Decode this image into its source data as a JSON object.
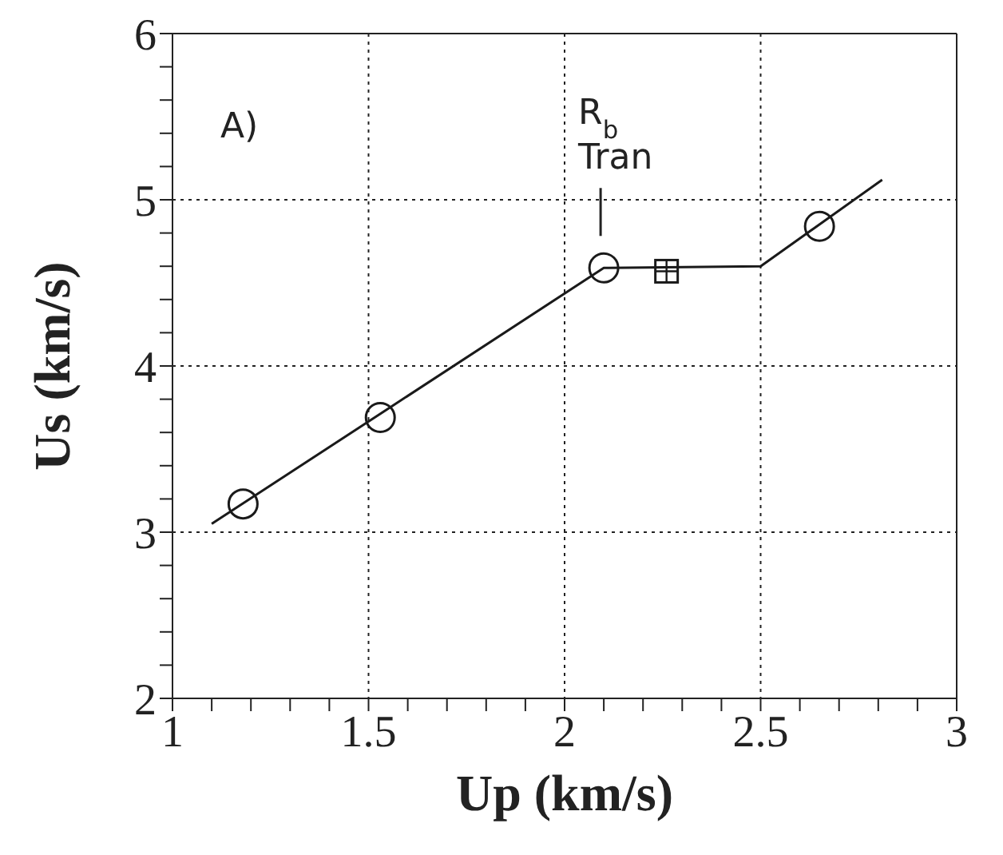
{
  "chart_data": {
    "type": "scatter",
    "xlabel": "Up (km/s)",
    "ylabel": "Us (km/s)",
    "series": [
      {
        "type": "line",
        "color": "#1a1a1a",
        "marker": "none",
        "x": [
          1.1,
          2.1,
          2.5,
          2.81
        ],
        "values": [
          3.05,
          4.59,
          4.6,
          5.12
        ]
      },
      {
        "color": "#1a1a1a",
        "marker": "circle",
        "x": [
          1.18,
          1.53,
          2.1,
          2.65
        ],
        "values": [
          3.17,
          3.69,
          4.59,
          4.84
        ]
      },
      {
        "color": "#1a1a1a",
        "marker": "square",
        "x": [
          2.26
        ],
        "values": [
          4.57
        ]
      }
    ],
    "annotations": [
      "A)",
      {
        "text": "R$_{b}$ Tran",
        "x": 2.1,
        "y": 4.59
      }
    ],
    "xlim": [
      1,
      3
    ],
    "ylim": [
      2,
      6
    ],
    "xticks": [
      1,
      {
        "value": 1.1,
        "label": null
      },
      {
        "value": 1.2,
        "label": null
      },
      {
        "value": 1.3,
        "label": null
      },
      {
        "value": 1.4,
        "label": null
      },
      1.5,
      {
        "value": 1.6,
        "label": null
      },
      {
        "value": 1.7,
        "label": null
      },
      {
        "value": 1.8,
        "label": null
      },
      {
        "value": 1.9,
        "label": null
      },
      2,
      {
        "value": 2.1,
        "label": null
      },
      {
        "value": 2.2,
        "label": null
      },
      {
        "value": 2.3,
        "label": null
      },
      {
        "value": 2.4,
        "label": null
      },
      2.5,
      {
        "value": 2.6,
        "label": null
      },
      {
        "value": 2.7,
        "label": null
      },
      {
        "value": 2.8,
        "label": null
      },
      {
        "value": 2.9,
        "label": null
      },
      3
    ],
    "yticks": [
      2,
      {
        "value": 2.2,
        "label": null
      },
      {
        "value": 2.4,
        "label": null
      },
      {
        "value": 2.6,
        "label": null
      },
      {
        "value": 2.8,
        "label": null
      },
      3,
      {
        "value": 3.2,
        "label": null
      },
      {
        "value": 3.4,
        "label": null
      },
      {
        "value": 3.6,
        "label": null
      },
      {
        "value": 3.8,
        "label": null
      },
      4,
      {
        "value": 4.2,
        "label": null
      },
      {
        "value": 4.4,
        "label": null
      },
      {
        "value": 4.6,
        "label": null
      },
      {
        "value": 4.8,
        "label": null
      },
      5,
      {
        "value": 5.2,
        "label": null
      },
      {
        "value": 5.4,
        "label": null
      },
      {
        "value": 5.6,
        "label": null
      },
      {
        "value": 5.8,
        "label": null
      },
      6
    ],
    "grid": true,
    "legend": false
  }
}
